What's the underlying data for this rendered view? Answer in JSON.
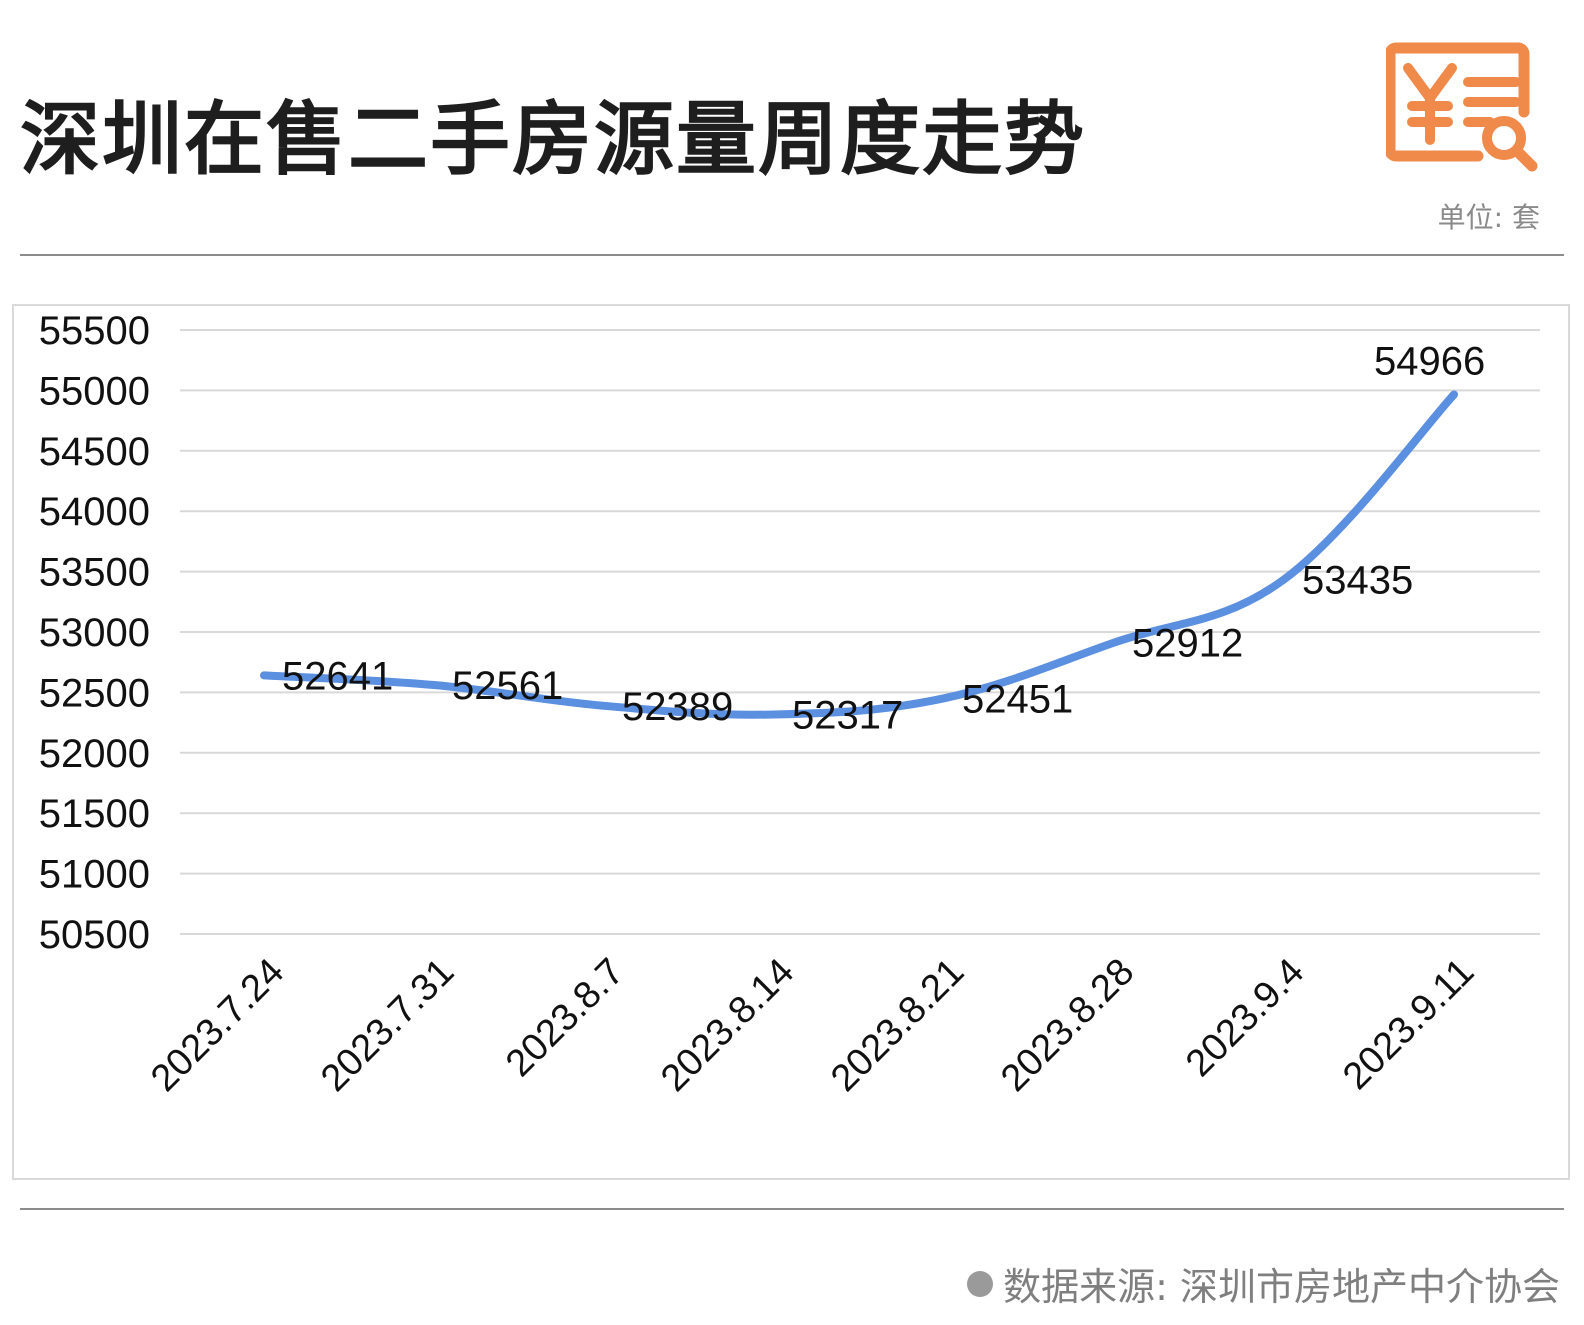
{
  "header": {
    "title": "深圳在售二手房源量周度走势",
    "unit": "单位: 套"
  },
  "footer": {
    "source": "数据来源: 深圳市房地产中介协会"
  },
  "colors": {
    "line": "#5b8fe0",
    "logo": "#f08a4b",
    "grid": "#d9d9d9"
  },
  "chart_data": {
    "type": "line",
    "title": "深圳在售二手房源量周度走势",
    "unit": "单位: 套",
    "categories": [
      "2023.7.24",
      "2023.7.31",
      "2023.8.7",
      "2023.8.14",
      "2023.8.21",
      "2023.8.28",
      "2023.9.4",
      "2023.9.11"
    ],
    "series": [
      {
        "values": [
          52641,
          52561,
          52389,
          52317,
          52451,
          52912,
          53435,
          54966
        ]
      }
    ],
    "data_labels": [
      "52641",
      "52561",
      "52389",
      "52317",
      "52451",
      "52912",
      "53435",
      "54966"
    ],
    "y_ticks": [
      "55500",
      "55000",
      "54500",
      "54000",
      "53500",
      "53000",
      "52500",
      "52000",
      "51500",
      "51000",
      "50500"
    ],
    "ylim": [
      50500,
      55500
    ],
    "grid": true,
    "legend": "none"
  }
}
